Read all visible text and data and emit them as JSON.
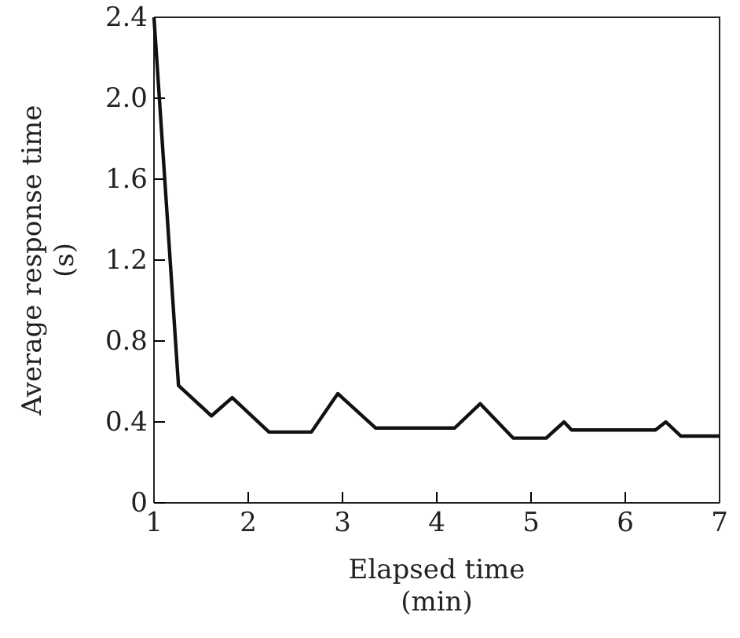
{
  "chart_data": {
    "type": "line",
    "xlabel": "Elapsed time\n(min)",
    "ylabel": "Average response time\n(s)",
    "x": [
      1,
      1.26,
      1.61,
      1.83,
      2.22,
      2.67,
      2.95,
      3.35,
      4.19,
      4.46,
      4.81,
      5.16,
      5.35,
      5.43,
      6.32,
      6.43,
      6.59,
      7
    ],
    "series": [
      {
        "color": "#111111",
        "values": [
          2.4,
          0.58,
          0.43,
          0.52,
          0.35,
          0.35,
          0.54,
          0.37,
          0.37,
          0.49,
          0.32,
          0.32,
          0.4,
          0.36,
          0.36,
          0.4,
          0.33,
          0.33
        ]
      }
    ],
    "xlim": [
      1,
      7
    ],
    "xticks": [
      1,
      2,
      3,
      4,
      5,
      6,
      7
    ],
    "ylim": [
      0,
      2.4
    ],
    "yticks": [
      0,
      0.4,
      0.8,
      1.2,
      1.6,
      {
        "value": 2,
        "label": "2.0"
      },
      2.4
    ],
    "marker": "none",
    "line_style": "solid"
  }
}
